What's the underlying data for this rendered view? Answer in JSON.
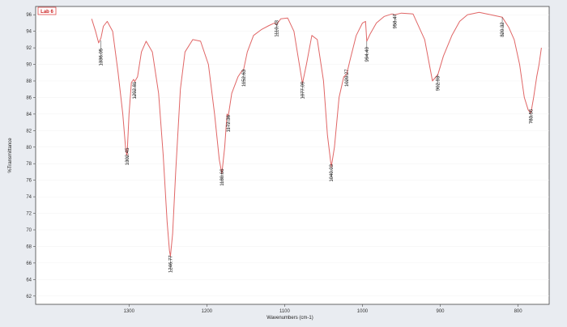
{
  "chart_data": {
    "type": "line",
    "title": "Lab 6",
    "xlabel": "Wavenumbers (cm-1)",
    "ylabel": "%Transmittance",
    "x_reversed": true,
    "xlim": [
      1420,
      760
    ],
    "ylim": [
      61,
      97
    ],
    "x_ticks": [
      {
        "value": 1300,
        "label": "1300"
      },
      {
        "value": 1200,
        "label": "1200"
      },
      {
        "value": 1100,
        "label": "1100"
      },
      {
        "value": 1000,
        "label": "1000"
      },
      {
        "value": 900,
        "label": "900"
      },
      {
        "value": 800,
        "label": "800"
      }
    ],
    "y_ticks": [
      "96",
      "94",
      "92",
      "90",
      "88",
      "86",
      "84",
      "82",
      "80",
      "78",
      "76",
      "74",
      "72",
      "70",
      "68",
      "66",
      "64",
      "62"
    ],
    "line_color": "#e06666",
    "series": [
      {
        "points": [
          [
            1348,
            95.5
          ],
          [
            1343,
            94.0
          ],
          [
            1339,
            92.6
          ],
          [
            1336,
            93.2
          ],
          [
            1333,
            94.6
          ],
          [
            1328,
            95.2
          ],
          [
            1321,
            94.0
          ],
          [
            1314,
            89.0
          ],
          [
            1308,
            84.0
          ],
          [
            1304,
            79.5
          ],
          [
            1302.45,
            79.0
          ],
          [
            1300,
            84.0
          ],
          [
            1297,
            87.8
          ],
          [
            1294,
            88.2
          ],
          [
            1292.81,
            87.9
          ],
          [
            1289,
            88.5
          ],
          [
            1284,
            91.5
          ],
          [
            1278,
            92.8
          ],
          [
            1270,
            91.5
          ],
          [
            1262,
            86.5
          ],
          [
            1256,
            79.0
          ],
          [
            1251,
            71.0
          ],
          [
            1248,
            67.5
          ],
          [
            1246.77,
            66.8
          ],
          [
            1244,
            69.5
          ],
          [
            1240,
            77.0
          ],
          [
            1234,
            87.0
          ],
          [
            1228,
            91.5
          ],
          [
            1218,
            93.0
          ],
          [
            1208,
            92.8
          ],
          [
            1198,
            90.0
          ],
          [
            1190,
            84.0
          ],
          [
            1184,
            78.5
          ],
          [
            1180.66,
            76.8
          ],
          [
            1177,
            80.0
          ],
          [
            1174,
            84.0
          ],
          [
            1172.36,
            83.8
          ],
          [
            1168,
            86.5
          ],
          [
            1160,
            88.5
          ],
          [
            1155,
            89.2
          ],
          [
            1152.63,
            89.4
          ],
          [
            1148,
            91.5
          ],
          [
            1140,
            93.5
          ],
          [
            1130,
            94.2
          ],
          [
            1120,
            94.7
          ],
          [
            1113,
            95.0
          ],
          [
            1110.48,
            94.8
          ],
          [
            1105,
            95.5
          ],
          [
            1096,
            95.6
          ],
          [
            1088,
            94.0
          ],
          [
            1082,
            90.5
          ],
          [
            1077.09,
            87.7
          ],
          [
            1072,
            90.0
          ],
          [
            1065,
            93.5
          ],
          [
            1058,
            93.0
          ],
          [
            1050,
            88.0
          ],
          [
            1045,
            81.5
          ],
          [
            1040.03,
            77.6
          ],
          [
            1036,
            80.0
          ],
          [
            1030,
            86.0
          ],
          [
            1024,
            88.5
          ],
          [
            1020.27,
            88.8
          ],
          [
            1016,
            90.5
          ],
          [
            1008,
            93.5
          ],
          [
            1000,
            95.0
          ],
          [
            996,
            95.2
          ],
          [
            994.4,
            92.8
          ],
          [
            990,
            93.7
          ],
          [
            982,
            95.0
          ],
          [
            972,
            95.8
          ],
          [
            962,
            96.1
          ],
          [
            958.47,
            96.0
          ],
          [
            950,
            96.2
          ],
          [
            935,
            96.1
          ],
          [
            920,
            93.0
          ],
          [
            910,
            88.0
          ],
          [
            902.93,
            88.8
          ],
          [
            896,
            91.0
          ],
          [
            885,
            93.5
          ],
          [
            875,
            95.2
          ],
          [
            865,
            96.0
          ],
          [
            850,
            96.3
          ],
          [
            835,
            96.0
          ],
          [
            820.32,
            95.7
          ],
          [
            812,
            94.5
          ],
          [
            805,
            93.0
          ],
          [
            798,
            90.0
          ],
          [
            792,
            86.0
          ],
          [
            787,
            84.5
          ],
          [
            783.56,
            84.1
          ],
          [
            780,
            86.0
          ],
          [
            776,
            88.5
          ],
          [
            773,
            90.0
          ],
          [
            770,
            92.0
          ]
        ]
      }
    ],
    "peaks": [
      {
        "x": 1336.05,
        "label": "1336.05",
        "label_y": 90.0,
        "marker_to": 92.9
      },
      {
        "x": 1302.45,
        "label": "1302.45",
        "label_y": 78.0,
        "marker_to": 79.0
      },
      {
        "x": 1292.81,
        "label": "1292.81",
        "label_y": 86.0,
        "marker_to": 87.9
      },
      {
        "x": 1246.77,
        "label": "1246.77",
        "label_y": 65.0,
        "marker_to": 66.8
      },
      {
        "x": 1180.66,
        "label": "1180.66",
        "label_y": 75.5,
        "marker_to": 76.8
      },
      {
        "x": 1172.36,
        "label": "1172.36",
        "label_y": 82.0,
        "marker_to": 83.8
      },
      {
        "x": 1152.63,
        "label": "1152.63",
        "label_y": 87.5,
        "marker_to": 89.4
      },
      {
        "x": 1110.48,
        "label": "1110.48",
        "label_y": 93.5,
        "marker_to": 94.8
      },
      {
        "x": 1077.09,
        "label": "1077.09",
        "label_y": 86.0,
        "marker_to": 87.7
      },
      {
        "x": 1040.03,
        "label": "1040.03",
        "label_y": 76.0,
        "marker_to": 77.6
      },
      {
        "x": 1020.27,
        "label": "1020.27",
        "label_y": 87.5,
        "marker_to": 88.8
      },
      {
        "x": 994.4,
        "label": "994.40",
        "label_y": 90.5,
        "marker_to": 92.8
      },
      {
        "x": 958.47,
        "label": "958.47",
        "label_y": 94.5,
        "marker_to": 96.0
      },
      {
        "x": 902.93,
        "label": "902.93",
        "label_y": 87.0,
        "marker_to": 88.8
      },
      {
        "x": 820.32,
        "label": "820.32",
        "label_y": 93.5,
        "marker_to": 95.7
      },
      {
        "x": 783.56,
        "label": "783.56",
        "label_y": 83.0,
        "marker_to": 84.1
      }
    ]
  }
}
